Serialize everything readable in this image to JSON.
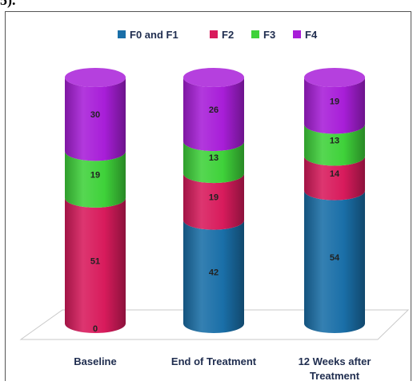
{
  "header_fragment": "5).",
  "chart_data": {
    "type": "bar",
    "stacked": true,
    "style": "3d-cylinder",
    "title": "",
    "xlabel": "",
    "ylabel": "",
    "ylim": [
      0,
      100
    ],
    "legend_position": "top-center",
    "grid": false,
    "categories": [
      "Baseline",
      "End of Treatment",
      "12 Weeks after Treatment"
    ],
    "series": [
      {
        "name": "F0 and F1",
        "color": "#1a6fa8",
        "values": [
          0,
          42,
          54
        ]
      },
      {
        "name": "F2",
        "color": "#d81b5c",
        "values": [
          51,
          19,
          14
        ]
      },
      {
        "name": "F3",
        "color": "#3fd23a",
        "values": [
          19,
          13,
          13
        ]
      },
      {
        "name": "F4",
        "color": "#a81ed8",
        "values": [
          30,
          26,
          19
        ]
      }
    ]
  }
}
